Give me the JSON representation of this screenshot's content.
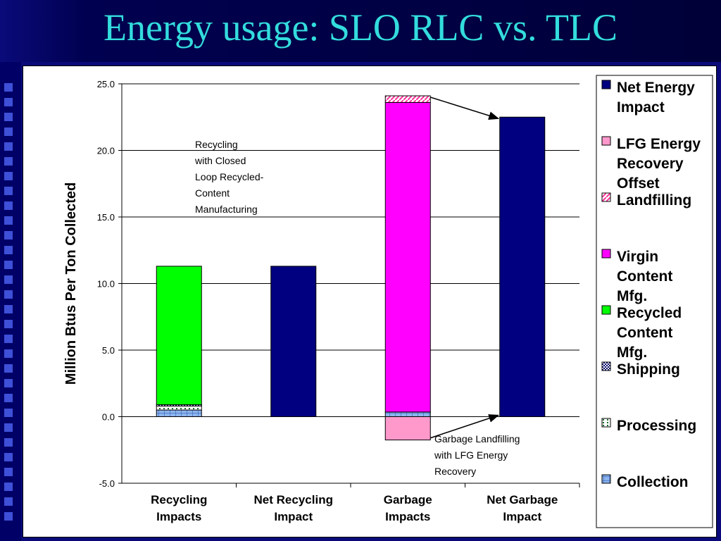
{
  "slide": {
    "title": "Energy usage: SLO RLC vs. TLC"
  },
  "chart_data": {
    "type": "bar",
    "stacked": true,
    "ylabel": "Million Btus Per Ton Collected",
    "ylim": [
      -5.0,
      25.0
    ],
    "yticks": [
      "25.0",
      "20.0",
      "15.0",
      "10.0",
      "5.0",
      "0.0",
      "-5.0"
    ],
    "categories": [
      [
        "Recycling",
        "Impacts"
      ],
      [
        "Net Recycling",
        "Impact"
      ],
      [
        "Garbage",
        "Impacts"
      ],
      [
        "Net Garbage",
        "Impact"
      ]
    ],
    "series": [
      {
        "name": "Collection",
        "color": "#8db4ee",
        "pattern": "grid",
        "values": [
          0.5,
          0,
          0.35,
          0
        ]
      },
      {
        "name": "Processing",
        "color": "#ffffff",
        "pattern": "dots",
        "values": [
          0.3,
          0,
          0,
          0
        ]
      },
      {
        "name": "Shipping",
        "color": "#0a0a6e",
        "pattern": "check",
        "values": [
          0.1,
          0,
          0,
          0
        ]
      },
      {
        "name": "Recycled Content Mfg.",
        "color": "#00ff00",
        "values": [
          10.4,
          0,
          0,
          0
        ]
      },
      {
        "name": "Virgin Content Mfg.",
        "color": "#ff00ff",
        "values": [
          0,
          0,
          23.25,
          0
        ]
      },
      {
        "name": "Landfilling",
        "color": "#ffffff",
        "pattern": "hatch",
        "values": [
          0,
          0,
          0.5,
          0
        ]
      },
      {
        "name": "LFG Energy Recovery Offset",
        "color": "#ff99cc",
        "values": [
          0,
          0,
          -1.75,
          0
        ]
      },
      {
        "name": "Net Energy Impact",
        "color": "#000080",
        "values": [
          0,
          11.3,
          0,
          22.5
        ]
      }
    ],
    "legend": {
      "placement": "right",
      "entries": [
        {
          "lines": [
            "Net Energy",
            "Impact"
          ],
          "series": 7
        },
        {
          "lines": [
            "LFG Energy",
            "Recovery",
            "Offset"
          ],
          "series": 6
        },
        {
          "lines": [
            "Landfilling"
          ],
          "series": 5
        },
        {
          "lines": [
            "Virgin",
            "Content",
            "Mfg."
          ],
          "series": 4
        },
        {
          "lines": [
            "Recycled",
            "Content",
            "Mfg."
          ],
          "series": 3
        },
        {
          "lines": [
            "Shipping"
          ],
          "series": 2
        },
        {
          "lines": [
            "Processing"
          ],
          "series": 1
        },
        {
          "lines": [
            "Collection"
          ],
          "series": 0
        }
      ]
    },
    "annotations": [
      {
        "lines": [
          "Recycling",
          "with Closed",
          "Loop Recycled-",
          "Content",
          "Manufacturing"
        ]
      },
      {
        "lines": [
          "Garbage Landfilling",
          "with LFG Energy",
          "Recovery"
        ]
      }
    ],
    "grid": true
  }
}
